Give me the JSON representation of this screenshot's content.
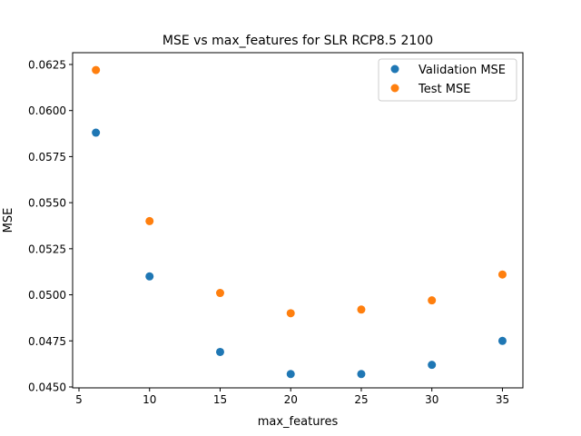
{
  "chart_data": {
    "type": "scatter",
    "title": "MSE vs max_features for SLR RCP8.5 2100",
    "xlabel": "max_features",
    "ylabel": "MSE",
    "xlim": [
      4.55,
      36.45
    ],
    "ylim": [
      0.04495,
      0.06314
    ],
    "xticks": [
      5,
      10,
      15,
      20,
      25,
      30,
      35
    ],
    "xtick_labels": [
      "5",
      "10",
      "15",
      "20",
      "25",
      "30",
      "35"
    ],
    "yticks": [
      0.045,
      0.0475,
      0.05,
      0.0525,
      0.055,
      0.0575,
      0.06,
      0.0625
    ],
    "ytick_labels": [
      "0.0450",
      "0.0475",
      "0.0500",
      "0.0525",
      "0.0550",
      "0.0575",
      "0.0600",
      "0.0625"
    ],
    "grid": false,
    "legend_position": "top-right",
    "series": [
      {
        "name": "Validation MSE",
        "color": "#1f77b4",
        "points": [
          [
            6.2,
            0.0588
          ],
          [
            10,
            0.051
          ],
          [
            15,
            0.0469
          ],
          [
            20,
            0.0457
          ],
          [
            25,
            0.0457
          ],
          [
            30,
            0.0462
          ],
          [
            35,
            0.0475
          ]
        ]
      },
      {
        "name": "Test MSE",
        "color": "#ff7f0e",
        "points": [
          [
            6.2,
            0.0622
          ],
          [
            10,
            0.054
          ],
          [
            15,
            0.0501
          ],
          [
            20,
            0.049
          ],
          [
            25,
            0.0492
          ],
          [
            30,
            0.0497
          ],
          [
            35,
            0.0511
          ]
        ]
      }
    ]
  }
}
